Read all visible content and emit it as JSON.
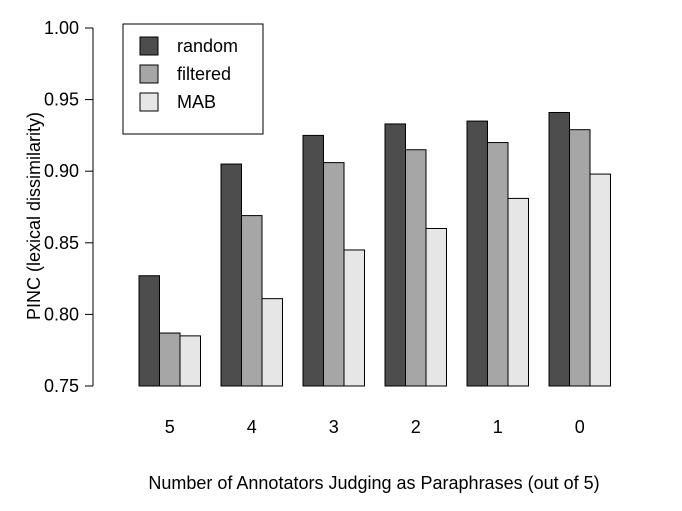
{
  "chart_data": {
    "type": "bar",
    "title": "",
    "xlabel": "Number of Annotators Judging as Paraphrases (out of 5)",
    "ylabel": "PINC (lexical dissimilarity)",
    "ylim": [
      0.75,
      1.0
    ],
    "yticks": [
      "0.75",
      "0.80",
      "0.85",
      "0.90",
      "0.95",
      "1.00"
    ],
    "categories": [
      "5",
      "4",
      "3",
      "2",
      "1",
      "0"
    ],
    "series": [
      {
        "name": "random",
        "color": "#4d4d4d",
        "values": [
          0.827,
          0.905,
          0.925,
          0.933,
          0.935,
          0.941
        ]
      },
      {
        "name": "filtered",
        "color": "#a6a6a6",
        "values": [
          0.787,
          0.869,
          0.906,
          0.915,
          0.92,
          0.929
        ]
      },
      {
        "name": "MAB",
        "color": "#e6e6e6",
        "values": [
          0.785,
          0.811,
          0.845,
          0.86,
          0.881,
          0.898
        ]
      }
    ],
    "legend": {
      "position": "top-left",
      "box": true
    },
    "grid": false
  }
}
